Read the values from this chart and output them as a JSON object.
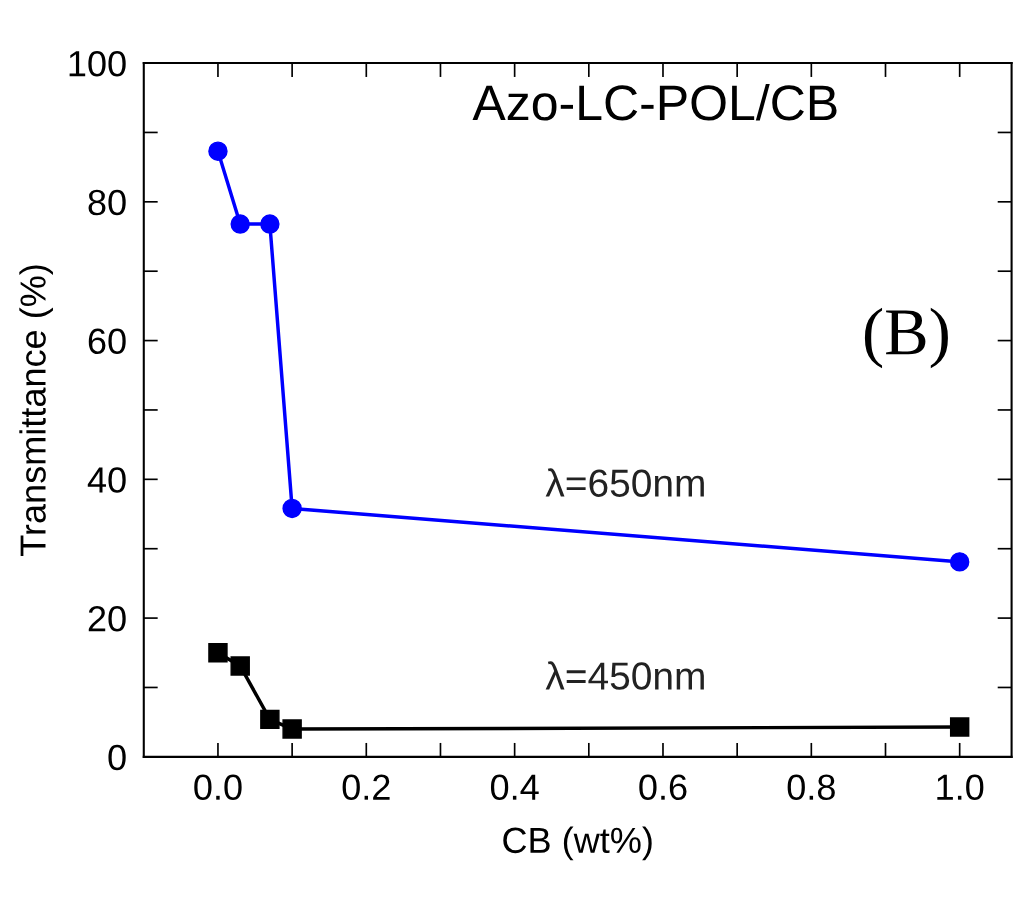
{
  "chart_data": {
    "type": "line",
    "title": "Azo-LC-POL/CB",
    "xlabel": "CB (wt%)",
    "ylabel": "Transmittance (%)",
    "annotations": [
      "(B)"
    ],
    "series": [
      {
        "name": "λ=650nm",
        "color": "#0000ff",
        "marker": "circle",
        "x": [
          0.0,
          0.03,
          0.07,
          0.1,
          1.0
        ],
        "values": [
          87.3,
          76.8,
          76.8,
          35.8,
          28.1
        ]
      },
      {
        "name": "λ=450nm",
        "color": "#000000",
        "marker": "square",
        "x": [
          0.0,
          0.03,
          0.07,
          0.1,
          1.0
        ],
        "values": [
          15.0,
          13.1,
          5.4,
          4.0,
          4.3
        ]
      }
    ],
    "xlim": [
      -0.1,
      1.07
    ],
    "ylim": [
      0,
      100
    ],
    "xticks": [
      {
        "value": 0,
        "label": "0.0"
      },
      {
        "value": 0.1,
        "label": null
      },
      0.2,
      {
        "value": 0.3,
        "label": null
      },
      0.4,
      {
        "value": 0.5,
        "label": null
      },
      0.6,
      {
        "value": 0.7,
        "label": null
      },
      0.8,
      {
        "value": 0.9,
        "label": null
      },
      {
        "value": 1,
        "label": "1.0"
      }
    ],
    "yticks": [
      0,
      {
        "value": 10,
        "label": null
      },
      20,
      {
        "value": 30,
        "label": null
      },
      40,
      {
        "value": 50,
        "label": null
      },
      60,
      {
        "value": 70,
        "label": null
      },
      80,
      {
        "value": 90,
        "label": null
      },
      100
    ],
    "grid": false,
    "legend": false,
    "line_style": "solid"
  }
}
